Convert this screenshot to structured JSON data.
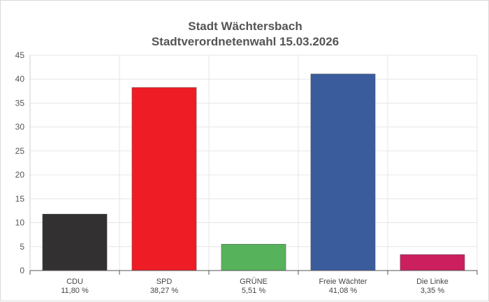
{
  "chart_data": {
    "type": "bar",
    "title": "Stadt Wächtersbach",
    "subtitle": "Stadtverordnetenwahl 15.03.2026",
    "categories": [
      "CDU",
      "SPD",
      "GRÜNE",
      "Freie Wächter",
      "Die Linke"
    ],
    "value_labels": [
      "11,80 %",
      "38,27 %",
      "5,51 %",
      "41,08 %",
      "3,35 %"
    ],
    "values": [
      11.8,
      38.27,
      5.51,
      41.08,
      3.35
    ],
    "colors": [
      "#333031",
      "#ee1c25",
      "#56b35b",
      "#3a5c9c",
      "#cc1f5e"
    ],
    "ylim": [
      0,
      45
    ],
    "yticks": [
      "0",
      "5",
      "10",
      "15",
      "20",
      "25",
      "30",
      "35",
      "40",
      "45"
    ],
    "grid": true,
    "legend": "none"
  }
}
